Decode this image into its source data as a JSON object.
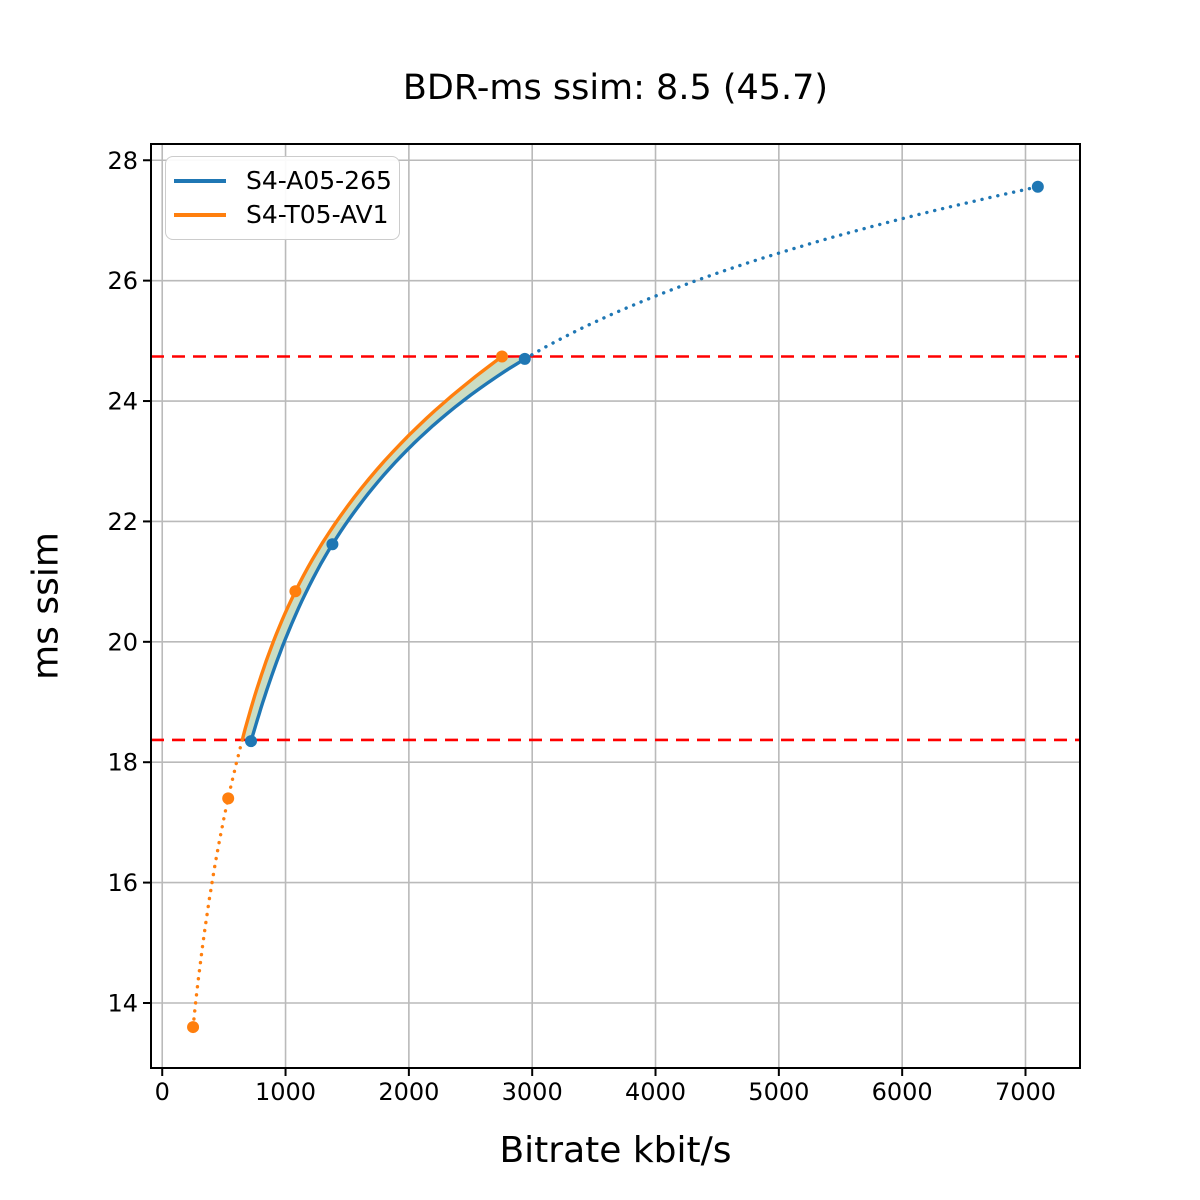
{
  "chart_data": {
    "type": "line",
    "title": "BDR-ms ssim: 8.5 (45.7)",
    "xlabel": "Bitrate kbit/s",
    "ylabel": "ms ssim",
    "xlim": [
      -91,
      7442
    ],
    "ylim": [
      12.92,
      28.27
    ],
    "xticks": [
      0,
      1000,
      2000,
      3000,
      4000,
      5000,
      6000,
      7000
    ],
    "yticks": [
      14,
      16,
      18,
      20,
      22,
      24,
      26,
      28
    ],
    "grid": true,
    "grid_color": "#bababa",
    "spine_color": "#000000",
    "legend_position": "upper-left",
    "series": [
      {
        "name": "S4-A05-265",
        "color": "#1f77b4",
        "marker": "circle",
        "points": [
          [
            720,
            18.35
          ],
          [
            1380,
            21.62
          ],
          [
            2940,
            24.7
          ],
          [
            7100,
            27.56
          ]
        ],
        "dotted": {
          "axis": "x",
          "value": 2940,
          "side": "after"
        }
      },
      {
        "name": "S4-T05-AV1",
        "color": "#ff7f0e",
        "marker": "circle",
        "points": [
          [
            250,
            13.6
          ],
          [
            535,
            17.4
          ],
          [
            1080,
            20.84
          ],
          [
            2755,
            24.74
          ]
        ],
        "dotted": {
          "axis": "y",
          "value": 18.37,
          "side": "before"
        }
      }
    ],
    "hlines": [
      {
        "y": 18.37,
        "color": "#ff0000",
        "style": "dashed"
      },
      {
        "y": 24.74,
        "color": "#ff0000",
        "style": "dashed"
      }
    ],
    "fill_between": {
      "color": "#cbddc3",
      "between": "solid segments of both series"
    }
  }
}
